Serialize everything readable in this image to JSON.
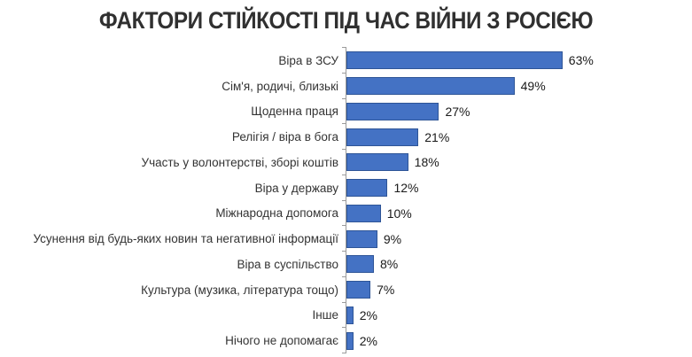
{
  "chart": {
    "title": "ФАКТОРИ СТІЙКОСТІ ПІД ЧАС ВІЙНИ З РОСІЄЮ"
  },
  "chart_data": {
    "type": "bar",
    "orientation": "horizontal",
    "title": "ФАКТОРИ СТІЙКОСТІ ПІД ЧАС ВІЙНИ З РОСІЄЮ",
    "categories": [
      "Віра в ЗСУ",
      "Сім'я, родичі, близькі",
      "Щоденна праця",
      "Релігія / віра в бога",
      "Участь у волонтерстві, зборі коштів",
      "Віра у державу",
      "Міжнародна допомога",
      "Усунення від будь-яких новин та негативної інформації",
      "Віра в суспільство",
      "Культура (музика, література тощо)",
      "Інше",
      "Нічого не допомагає"
    ],
    "values": [
      63,
      49,
      27,
      21,
      18,
      12,
      10,
      9,
      8,
      7,
      2,
      2
    ],
    "value_suffix": "%",
    "data_labels": true,
    "xlabel": "",
    "ylabel": "",
    "xlim": [
      0,
      100
    ],
    "grid": false,
    "legend": false
  },
  "colors": {
    "bar_fill": "#4472C4",
    "bar_border": "#2E5597",
    "axis": "#9B9B9B",
    "title_text": "#303030",
    "label_text": "#333333",
    "value_text": "#1A1A1A",
    "background": "#FFFFFF"
  }
}
